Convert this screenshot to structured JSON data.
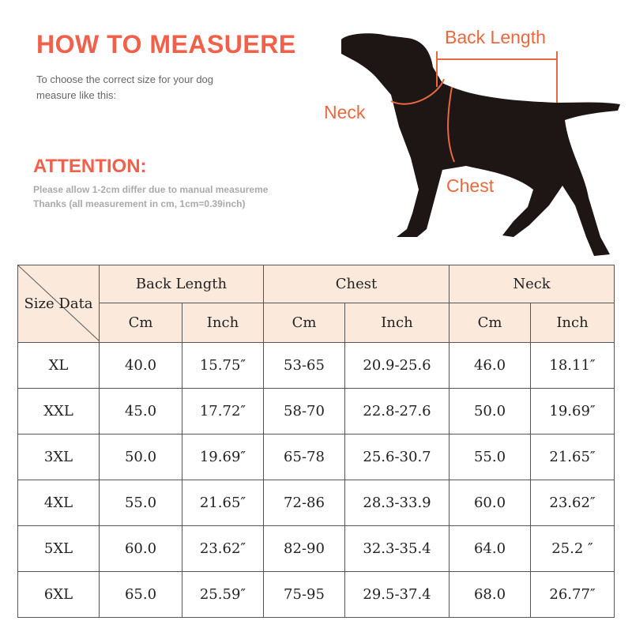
{
  "header": {
    "title": "HOW TO MEASUERE",
    "instructions": [
      "To choose the correct size for your dog",
      "measure like this:"
    ]
  },
  "attention": {
    "title": "ATTENTION:",
    "notes": [
      "Please allow 1-2cm differ due to manual measureme",
      "Thanks (all measurement in cm, 1cm=0.39inch)"
    ]
  },
  "diagram": {
    "labels": [
      "Back Length",
      "Neck",
      "Chest"
    ]
  },
  "table": {
    "corner": [
      "Size",
      "Data"
    ],
    "groups": [
      "Back Length",
      "Chest",
      "Neck"
    ],
    "units": [
      "Cm",
      "Inch",
      "Cm",
      "Inch",
      "Cm",
      "Inch"
    ],
    "rows": [
      [
        "XL",
        "40.0",
        "15.75″",
        "53-65",
        "20.9-25.6",
        "46.0",
        "18.11″"
      ],
      [
        "XXL",
        "45.0",
        "17.72″",
        "58-70",
        "22.8-27.6",
        "50.0",
        "19.69″"
      ],
      [
        "3XL",
        "50.0",
        "19.69″",
        "65-78",
        "25.6-30.7",
        "55.0",
        "21.65″"
      ],
      [
        "4XL",
        "55.0",
        "21.65″",
        "72-86",
        "28.3-33.9",
        "60.0",
        "23.62″"
      ],
      [
        "5XL",
        "60.0",
        "23.62″",
        "82-90",
        "32.3-35.4",
        "64.0",
        "25.2 ″"
      ],
      [
        "6XL",
        "65.0",
        "25.59″",
        "75-95",
        "29.5-37.4",
        "68.0",
        "26.77″"
      ]
    ]
  }
}
